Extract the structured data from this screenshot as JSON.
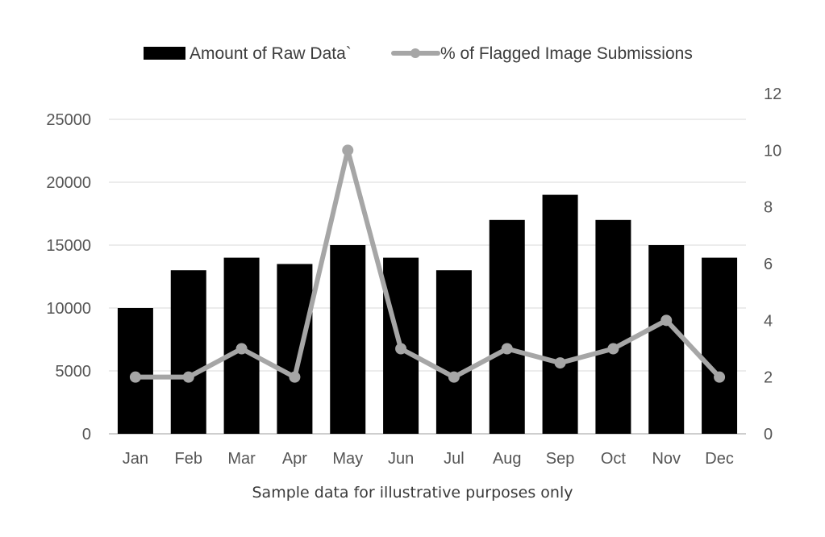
{
  "chart_data": {
    "type": "bar",
    "categories": [
      "Jan",
      "Feb",
      "Mar",
      "Apr",
      "May",
      "Jun",
      "Jul",
      "Aug",
      "Sep",
      "Oct",
      "Nov",
      "Dec"
    ],
    "series": [
      {
        "name": "Amount of Raw Data`",
        "type": "bar",
        "axis": "left",
        "color": "#000000",
        "values": [
          10000,
          13000,
          14000,
          13500,
          15000,
          14000,
          13000,
          17000,
          19000,
          17000,
          15000,
          14000
        ]
      },
      {
        "name": "% of Flagged Image Submissions",
        "type": "line",
        "axis": "right",
        "color": "#a6a6a6",
        "values": [
          2,
          2,
          3,
          2,
          10,
          3,
          2,
          3,
          2.5,
          3,
          4,
          2
        ]
      }
    ],
    "y_left": {
      "ylim": [
        0,
        25000
      ],
      "ticks": [
        "0",
        "5000",
        "10000",
        "15000",
        "20000",
        "25000"
      ]
    },
    "y_right": {
      "ylim": [
        0,
        12
      ],
      "ticks": [
        "0",
        "2",
        "4",
        "6",
        "8",
        "10",
        "12"
      ]
    },
    "grid": true,
    "legend_position": "top-center",
    "caption": "Sample data for illustrative purposes only"
  }
}
